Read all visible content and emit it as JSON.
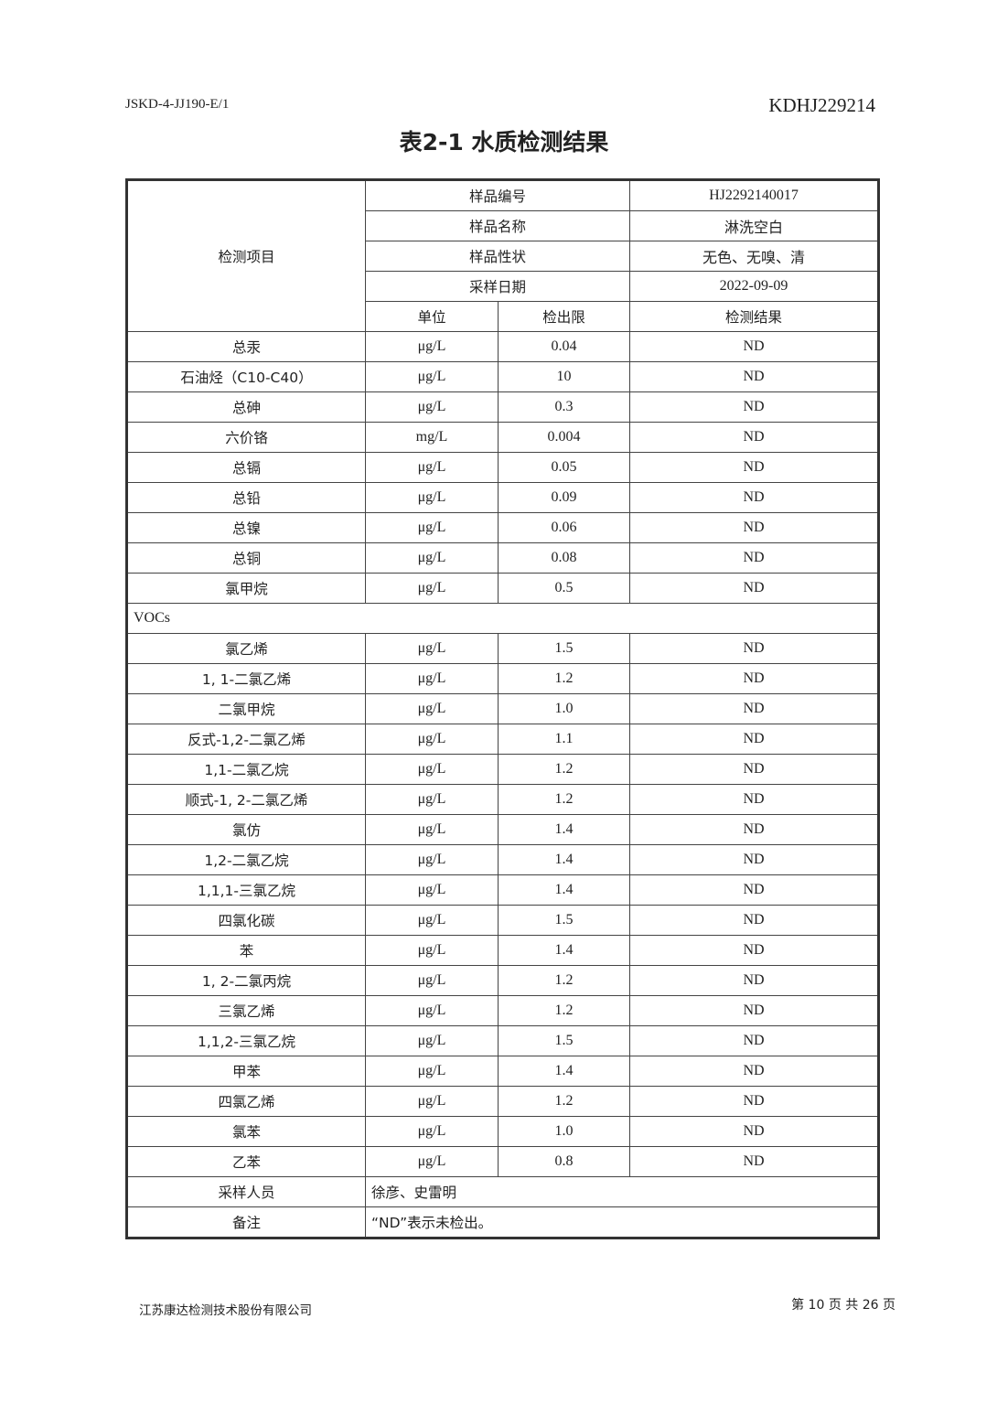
{
  "header": {
    "doc_code": "JSKD-4-JJ190-E/1",
    "report_no": "KDHJ229214"
  },
  "title": "表2-1 水质检测结果",
  "table": {
    "item_header": "检测项目",
    "meta": [
      {
        "label": "样品编号",
        "value": "HJ2292140017"
      },
      {
        "label": "样品名称",
        "value": "淋洗空白"
      },
      {
        "label": "样品性状",
        "value": "无色、无嗅、清"
      },
      {
        "label": "采样日期",
        "value": "2022-09-09"
      }
    ],
    "col_unit": "单位",
    "col_limit": "检出限",
    "col_result": "检测结果",
    "rows_a": [
      {
        "item": "总汞",
        "unit": "μg/L",
        "limit": "0.04",
        "result": "ND"
      },
      {
        "item": "石油烃（C10-C40）",
        "unit": "μg/L",
        "limit": "10",
        "result": "ND"
      },
      {
        "item": "总砷",
        "unit": "μg/L",
        "limit": "0.3",
        "result": "ND"
      },
      {
        "item": "六价铬",
        "unit": "mg/L",
        "limit": "0.004",
        "result": "ND"
      },
      {
        "item": "总镉",
        "unit": "μg/L",
        "limit": "0.05",
        "result": "ND"
      },
      {
        "item": "总铅",
        "unit": "μg/L",
        "limit": "0.09",
        "result": "ND"
      },
      {
        "item": "总镍",
        "unit": "μg/L",
        "limit": "0.06",
        "result": "ND"
      },
      {
        "item": "总铜",
        "unit": "μg/L",
        "limit": "0.08",
        "result": "ND"
      },
      {
        "item": "氯甲烷",
        "unit": "μg/L",
        "limit": "0.5",
        "result": "ND"
      }
    ],
    "section": "VOCs",
    "rows_b": [
      {
        "item": "氯乙烯",
        "unit": "μg/L",
        "limit": "1.5",
        "result": "ND"
      },
      {
        "item": "1, 1-二氯乙烯",
        "unit": "μg/L",
        "limit": "1.2",
        "result": "ND"
      },
      {
        "item": "二氯甲烷",
        "unit": "μg/L",
        "limit": "1.0",
        "result": "ND"
      },
      {
        "item": "反式-1,2-二氯乙烯",
        "unit": "μg/L",
        "limit": "1.1",
        "result": "ND"
      },
      {
        "item": "1,1-二氯乙烷",
        "unit": "μg/L",
        "limit": "1.2",
        "result": "ND"
      },
      {
        "item": "顺式-1, 2-二氯乙烯",
        "unit": "μg/L",
        "limit": "1.2",
        "result": "ND"
      },
      {
        "item": "氯仿",
        "unit": "μg/L",
        "limit": "1.4",
        "result": "ND"
      },
      {
        "item": "1,2-二氯乙烷",
        "unit": "μg/L",
        "limit": "1.4",
        "result": "ND"
      },
      {
        "item": "1,1,1-三氯乙烷",
        "unit": "μg/L",
        "limit": "1.4",
        "result": "ND"
      },
      {
        "item": "四氯化碳",
        "unit": "μg/L",
        "limit": "1.5",
        "result": "ND"
      },
      {
        "item": "苯",
        "unit": "μg/L",
        "limit": "1.4",
        "result": "ND"
      },
      {
        "item": "1, 2-二氯丙烷",
        "unit": "μg/L",
        "limit": "1.2",
        "result": "ND"
      },
      {
        "item": "三氯乙烯",
        "unit": "μg/L",
        "limit": "1.2",
        "result": "ND"
      },
      {
        "item": "1,1,2-三氯乙烷",
        "unit": "μg/L",
        "limit": "1.5",
        "result": "ND"
      },
      {
        "item": "甲苯",
        "unit": "μg/L",
        "limit": "1.4",
        "result": "ND"
      },
      {
        "item": "四氯乙烯",
        "unit": "μg/L",
        "limit": "1.2",
        "result": "ND"
      },
      {
        "item": "氯苯",
        "unit": "μg/L",
        "limit": "1.0",
        "result": "ND"
      },
      {
        "item": "乙苯",
        "unit": "μg/L",
        "limit": "0.8",
        "result": "ND"
      }
    ],
    "sampler_label": "采样人员",
    "sampler_value": "徐彦、史雷明",
    "note_label": "备注",
    "note_value": "“ND”表示未检出。"
  },
  "footer": {
    "company": "江苏康达检测技术股份有限公司",
    "page": "第 10 页 共 26 页"
  }
}
